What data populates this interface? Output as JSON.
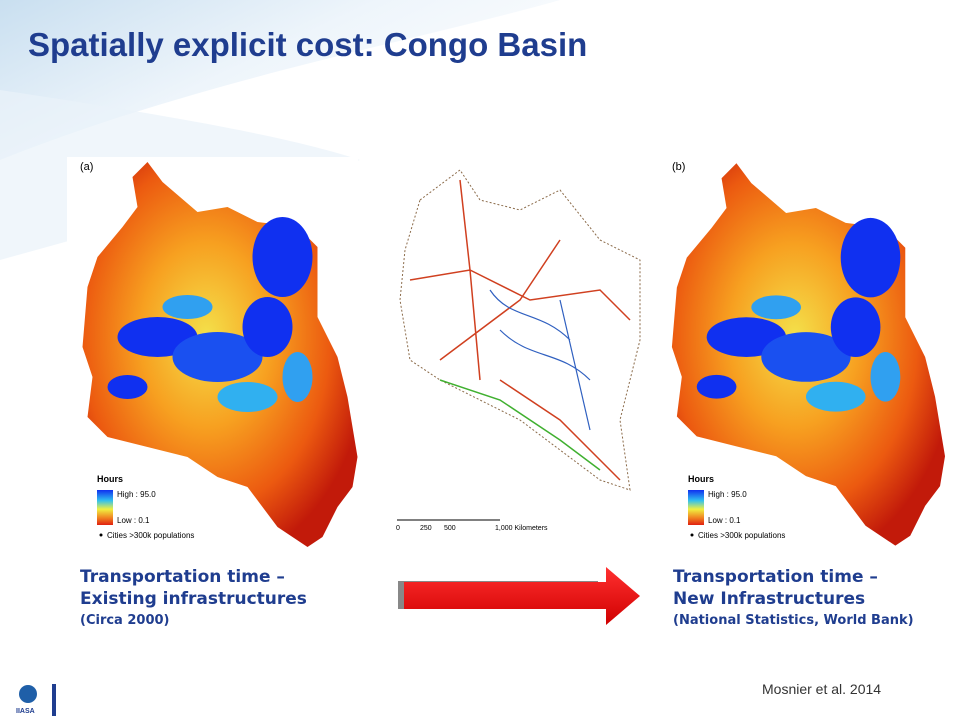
{
  "title": "Spatially explicit cost: Congo Basin",
  "maps": [
    {
      "label": "(a)",
      "legend": {
        "title": "Hours",
        "high": "High : 95.0",
        "low": "Low : 0.1",
        "cities": "Cities >300k populations"
      }
    },
    {
      "label": "(b)",
      "legend": {
        "title": "Hours",
        "high": "High : 95.0",
        "low": "Low : 0.1",
        "cities": "Cities >300k populations"
      }
    }
  ],
  "middle_map": {
    "scale": [
      "0",
      "250",
      "500",
      "1,000 Kilometers"
    ]
  },
  "captions": [
    {
      "line1": "Transportation time –",
      "line2": "Existing infrastructures",
      "line3": "(Circa 2000)"
    },
    {
      "line1": "Transportation time –",
      "line2": "New Infrastructures",
      "line3": "(National Statistics, World Bank)"
    }
  ],
  "citation": "Mosnier et al. 2014",
  "logo": "IIASA"
}
